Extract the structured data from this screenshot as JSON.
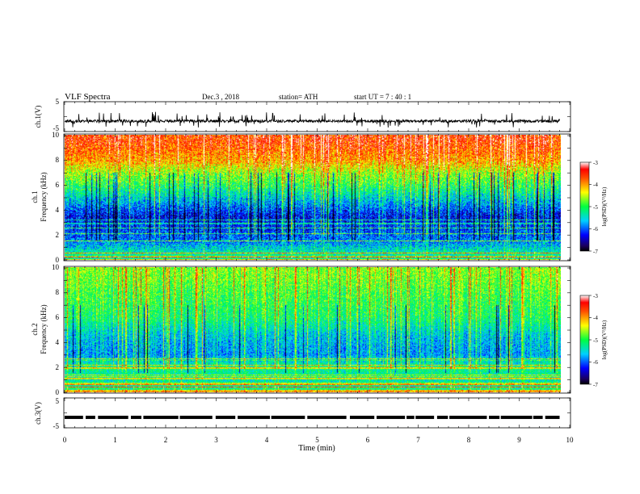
{
  "header": {
    "title": "VLF  Spectra",
    "date": "Dec.3  , 2018",
    "station": "station= ATH",
    "start": "start  UT  =   7  : 40 : 1"
  },
  "chart_data": [
    {
      "id": "ch1-waveform",
      "type": "line",
      "ylabel": "ch.1(V)",
      "yticks": [
        "5",
        "-5"
      ],
      "ylim": [
        -5,
        5
      ],
      "xlim": [
        0,
        10
      ],
      "data_extent_min": 9.8,
      "baseline_v": -1.5,
      "spike_amplitude_v": 2.5
    },
    {
      "id": "ch1-spectrogram",
      "type": "heatmap",
      "ylabel": "ch.1",
      "ylabel2": "Frequency  (kHz)",
      "yticks": [
        "10",
        "8",
        "6",
        "4",
        "2",
        "0"
      ],
      "ylim": [
        0,
        10
      ],
      "xlim": [
        0,
        10
      ],
      "data_extent_min": 9.8,
      "colorbar": {
        "label": "log(PSD)(V²/Hz)",
        "ticks": [
          "-3",
          "-4",
          "-5",
          "-6",
          "-7"
        ],
        "range": [
          -7,
          -3
        ]
      },
      "profile": [
        {
          "f_khz": 9.5,
          "log_psd": -3.6
        },
        {
          "f_khz": 8.0,
          "log_psd": -4.0
        },
        {
          "f_khz": 7.0,
          "log_psd": -4.6
        },
        {
          "f_khz": 6.0,
          "log_psd": -5.0
        },
        {
          "f_khz": 5.0,
          "log_psd": -5.5
        },
        {
          "f_khz": 3.5,
          "log_psd": -6.3
        },
        {
          "f_khz": 2.5,
          "log_psd": -6.1
        },
        {
          "f_khz": 1.5,
          "log_psd": -5.9
        },
        {
          "f_khz": 0.5,
          "log_psd": -5.3
        }
      ]
    },
    {
      "id": "ch2-spectrogram",
      "type": "heatmap",
      "ylabel": "ch.2",
      "ylabel2": "Frequency  (kHz)",
      "yticks": [
        "10",
        "8",
        "6",
        "4",
        "2",
        "0"
      ],
      "ylim": [
        0,
        10
      ],
      "xlim": [
        0,
        10
      ],
      "data_extent_min": 9.8,
      "colorbar": {
        "label": "log(PSD)(V²/Hz)",
        "ticks": [
          "-3",
          "-4",
          "-5",
          "-6",
          "-7"
        ],
        "range": [
          -7,
          -3
        ]
      },
      "profile": [
        {
          "f_khz": 9.5,
          "log_psd": -4.7
        },
        {
          "f_khz": 8.0,
          "log_psd": -4.9
        },
        {
          "f_khz": 6.0,
          "log_psd": -5.1
        },
        {
          "f_khz": 4.5,
          "log_psd": -5.6
        },
        {
          "f_khz": 3.0,
          "log_psd": -5.8
        },
        {
          "f_khz": 2.0,
          "log_psd": -5.2
        },
        {
          "f_khz": 1.0,
          "log_psd": -5.4
        },
        {
          "f_khz": 0.3,
          "log_psd": -5.2
        }
      ]
    },
    {
      "id": "ch3-waveform",
      "type": "line",
      "ylabel": "ch.3(V)",
      "yticks": [
        "5",
        "-5"
      ],
      "ylim": [
        -5,
        5
      ],
      "xlim": [
        0,
        10
      ],
      "xlabel": "Time  (min)",
      "xticks": [
        "0",
        "1",
        "2",
        "3",
        "4",
        "5",
        "6",
        "7",
        "8",
        "9",
        "10"
      ],
      "data_extent_min": 9.8,
      "level_v": -1.5
    }
  ]
}
